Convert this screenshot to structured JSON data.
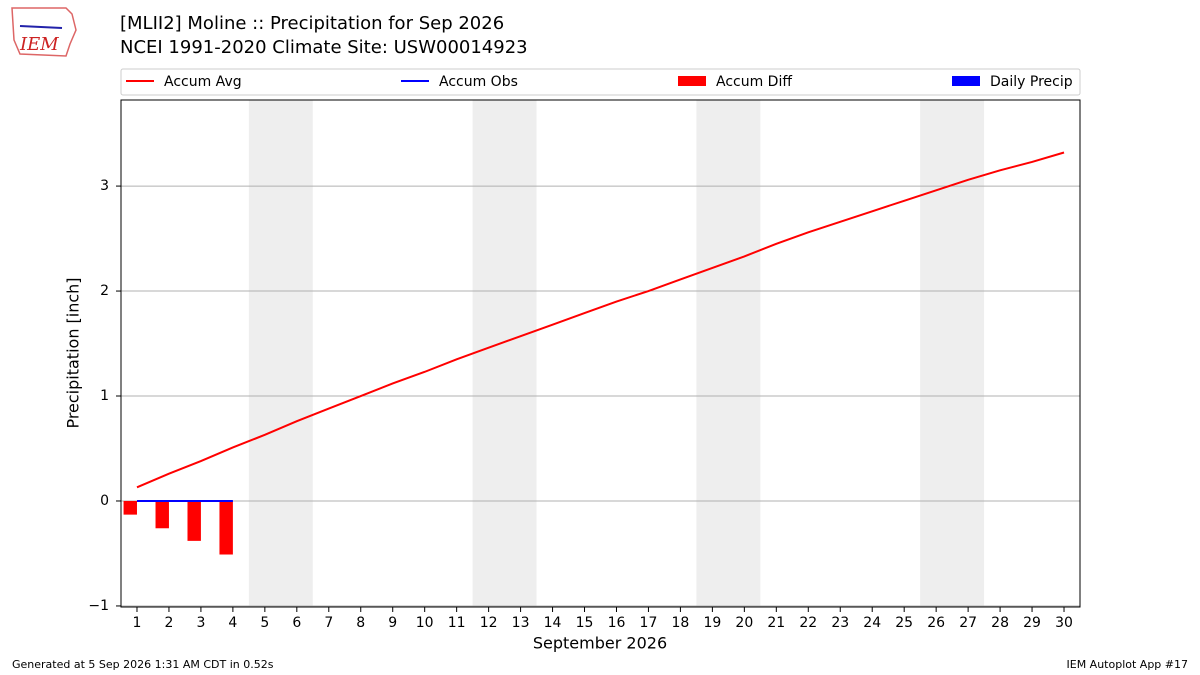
{
  "chart_data": {
    "type": "combo",
    "logo_text": "IEM",
    "title": "[MLII2] Moline :: Precipitation for Sep 2026",
    "subtitle": "NCEI 1991-2020 Climate Site: USW00014923",
    "xlabel": "September 2026",
    "ylabel": "Precipitation [inch]",
    "footer_left": "Generated at 5 Sep 2026 1:31 AM CDT in 0.52s",
    "footer_right": "IEM Autoplot App #17",
    "x": [
      1,
      2,
      3,
      4,
      5,
      6,
      7,
      8,
      9,
      10,
      11,
      12,
      13,
      14,
      15,
      16,
      17,
      18,
      19,
      20,
      21,
      22,
      23,
      24,
      25,
      26,
      27,
      28,
      29,
      30
    ],
    "xlim": [
      0.5,
      30.5
    ],
    "xticks": [
      1,
      2,
      3,
      4,
      5,
      6,
      7,
      8,
      9,
      10,
      11,
      12,
      13,
      14,
      15,
      16,
      17,
      18,
      19,
      20,
      21,
      22,
      23,
      24,
      25,
      26,
      27,
      28,
      29,
      30
    ],
    "ylim": [
      -1.01,
      3.82
    ],
    "yticks": [
      {
        "value": -1,
        "label": "−1"
      },
      0,
      1,
      2,
      3
    ],
    "grid": true,
    "shade_spans": [
      [
        4.5,
        6.5
      ],
      [
        11.5,
        13.5
      ],
      [
        18.5,
        20.5
      ],
      [
        25.5,
        27.5
      ]
    ],
    "series": [
      {
        "name": "Accum Avg",
        "type": "line",
        "color": "#ff0000",
        "values": [
          0.13,
          0.26,
          0.38,
          0.51,
          0.63,
          0.76,
          0.88,
          1.0,
          1.12,
          1.23,
          1.35,
          1.46,
          1.57,
          1.68,
          1.79,
          1.9,
          2.0,
          2.11,
          2.22,
          2.33,
          2.45,
          2.56,
          2.66,
          2.76,
          2.86,
          2.96,
          3.06,
          3.15,
          3.23,
          3.32
        ]
      },
      {
        "name": "Accum Obs",
        "type": "line",
        "color": "#0000ff",
        "values": [
          0,
          0,
          0,
          0,
          null,
          null,
          null,
          null,
          null,
          null,
          null,
          null,
          null,
          null,
          null,
          null,
          null,
          null,
          null,
          null,
          null,
          null,
          null,
          null,
          null,
          null,
          null,
          null,
          null,
          null
        ]
      },
      {
        "name": "Accum Diff",
        "type": "bar",
        "color": "#ff0000",
        "values": [
          -0.13,
          -0.26,
          -0.38,
          -0.51,
          null,
          null,
          null,
          null,
          null,
          null,
          null,
          null,
          null,
          null,
          null,
          null,
          null,
          null,
          null,
          null,
          null,
          null,
          null,
          null,
          null,
          null,
          null,
          null,
          null,
          null
        ]
      },
      {
        "name": "Daily Precip",
        "type": "bar",
        "color": "#0000ff",
        "values": [
          0,
          0,
          0,
          0,
          null,
          null,
          null,
          null,
          null,
          null,
          null,
          null,
          null,
          null,
          null,
          null,
          null,
          null,
          null,
          null,
          null,
          null,
          null,
          null,
          null,
          null,
          null,
          null,
          null,
          null
        ]
      }
    ]
  }
}
